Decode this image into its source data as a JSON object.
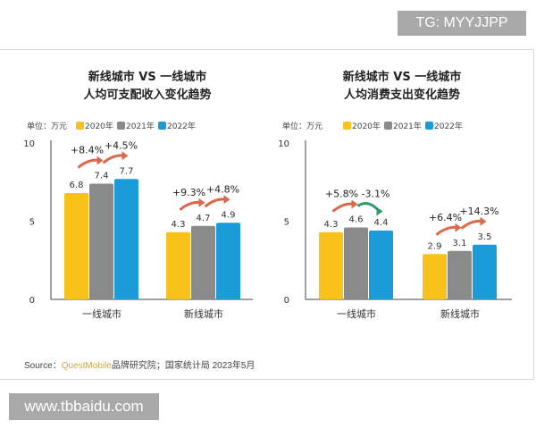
{
  "watermark_top": "TG: MYYJJPP",
  "watermark_bottom": "www.tbbaidu.com",
  "source": {
    "label": "Source：",
    "brand": "QuestMobile",
    "rest": "品牌研究院；国家统计局 2023年5月"
  },
  "colors": {
    "2020年": "#f8c21a",
    "2021年": "#8a8a8a",
    "2022年": "#1b9bd7",
    "up_arrow": "#d9694a",
    "down_arrow": "#2a9d6a"
  },
  "chart_data": [
    {
      "type": "bar",
      "title": [
        "新线城市 VS 一线城市",
        "人均可支配收入变化趋势"
      ],
      "unit": "单位：万元",
      "categories": [
        "一线城市",
        "新线城市"
      ],
      "series": [
        {
          "name": "2020年",
          "values": [
            6.8,
            4.3
          ]
        },
        {
          "name": "2021年",
          "values": [
            7.4,
            4.7
          ]
        },
        {
          "name": "2022年",
          "values": [
            7.7,
            4.9
          ]
        }
      ],
      "growth": [
        [
          "+8.4%",
          "+4.5%"
        ],
        [
          "+9.3%",
          "+4.8%"
        ]
      ],
      "ylim": [
        0,
        10
      ],
      "yticks": [
        0,
        5,
        10
      ],
      "grid": false,
      "legend": "top-left"
    },
    {
      "type": "bar",
      "title": [
        "新线城市 VS 一线城市",
        "人均消费支出变化趋势"
      ],
      "unit": "单位：万元",
      "categories": [
        "一线城市",
        "新线城市"
      ],
      "series": [
        {
          "name": "2020年",
          "values": [
            4.3,
            2.9
          ]
        },
        {
          "name": "2021年",
          "values": [
            4.6,
            3.1
          ]
        },
        {
          "name": "2022年",
          "values": [
            4.4,
            3.5
          ]
        }
      ],
      "growth": [
        [
          "+5.8%",
          "-3.1%"
        ],
        [
          "+6.4%",
          "+14.3%"
        ]
      ],
      "ylim": [
        0,
        10
      ],
      "yticks": [
        0,
        5,
        10
      ],
      "grid": false,
      "legend": "top-left"
    }
  ]
}
